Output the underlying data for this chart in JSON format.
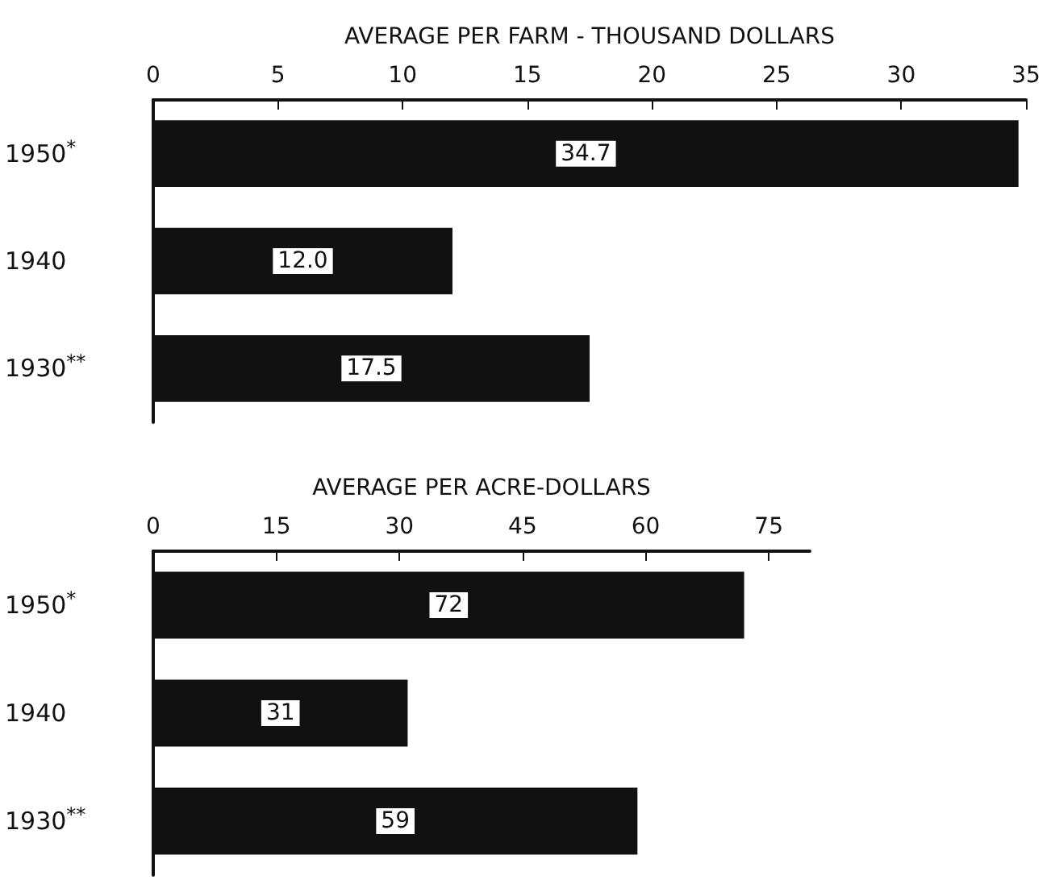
{
  "chart_data": [
    {
      "type": "bar",
      "orientation": "horizontal",
      "xlabel": "AVERAGE PER FARM - THOUSAND DOLLARS",
      "categories": [
        "1950$^{*}$",
        "1940",
        "1930$^{**}$"
      ],
      "values": [
        34.7,
        12.0,
        17.5
      ],
      "color": "#111111",
      "xlim": [
        0,
        35
      ],
      "xticks": [
        0,
        5,
        10,
        15,
        20,
        25,
        30,
        35
      ],
      "data_labels": true,
      "value_labels": [
        "34.7",
        "12.0",
        "17.5"
      ]
    },
    {
      "type": "bar",
      "orientation": "horizontal",
      "xlabel": "AVERAGE PER ACRE-DOLLARS",
      "categories": [
        "1950$^{*}$",
        "1940",
        "1930$^{**}$"
      ],
      "values": [
        72,
        31,
        59
      ],
      "color": "#111111",
      "xlim": [
        0,
        80
      ],
      "xticks": [
        0,
        15,
        30,
        45,
        60,
        75
      ],
      "data_labels": true
    }
  ]
}
